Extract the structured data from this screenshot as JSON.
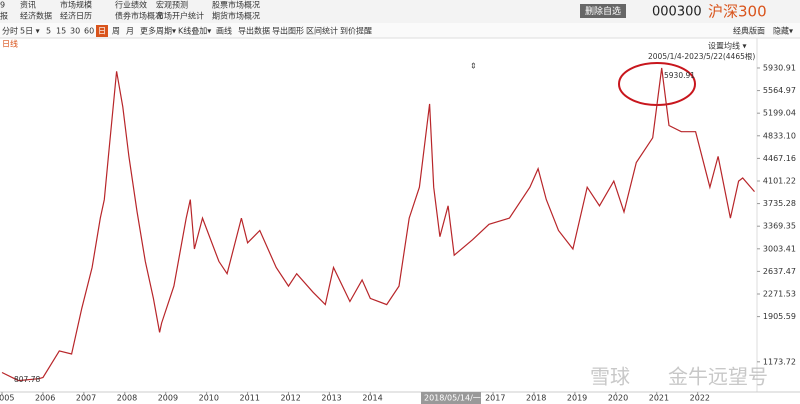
{
  "menu": {
    "rows": [
      [
        "9",
        "资讯",
        "市场规模",
        "行业绩效",
        "宏观预测",
        "股票市场概况"
      ],
      [
        "报",
        "经济数据",
        "经济日历",
        "债券市场概况",
        "市场开户统计",
        "期货市场概况"
      ]
    ]
  },
  "header": {
    "button": "删除自选",
    "code": "000300",
    "name": "沪深300"
  },
  "toolbar": {
    "items": [
      "分时",
      "5日 ▾",
      "5",
      "15",
      "30",
      "60",
      "日",
      "周",
      "月",
      "更多周期▾",
      "K线叠加▾",
      "画线",
      "导出数据",
      "导出图形",
      "区间统计",
      "到价提醒"
    ],
    "right": [
      "经典版面",
      "隐藏▾"
    ]
  },
  "chart_data": {
    "type": "line",
    "period_label": "日线",
    "ma_setting": "设置均线 ▾",
    "range_info": "2005/1/4-2023/5/22(4465根)",
    "peak_label": "5930.91",
    "low_label": "807.78",
    "crosshair_label": "2018/05/14/一",
    "watermark": [
      "雪球",
      "金牛远望号"
    ],
    "x": [
      2005.0,
      2005.4,
      2005.9,
      2006.0,
      2006.4,
      2006.7,
      2006.95,
      2007.2,
      2007.4,
      2007.5,
      2007.6,
      2007.8,
      2007.95,
      2008.1,
      2008.3,
      2008.5,
      2008.7,
      2008.85,
      2008.9,
      2009.2,
      2009.5,
      2009.6,
      2009.7,
      2009.9,
      2010.3,
      2010.5,
      2010.85,
      2011.0,
      2011.3,
      2011.7,
      2012.0,
      2012.2,
      2012.6,
      2012.9,
      2013.1,
      2013.5,
      2013.8,
      2014.0,
      2014.4,
      2014.7,
      2014.95,
      2015.2,
      2015.45,
      2015.55,
      2015.7,
      2015.9,
      2016.05,
      2016.5,
      2016.9,
      2017.4,
      2017.9,
      2018.1,
      2018.3,
      2018.6,
      2018.95,
      2019.3,
      2019.6,
      2019.95,
      2020.2,
      2020.5,
      2020.9,
      2021.12,
      2021.3,
      2021.6,
      2021.95,
      2022.3,
      2022.5,
      2022.8,
      2023.0,
      2023.1,
      2023.39
    ],
    "series": [
      {
        "color": "#b8262a",
        "values": [
          1000,
          870,
          900,
          920,
          1350,
          1300,
          2040,
          2700,
          3500,
          3800,
          4500,
          5877,
          5300,
          4500,
          3600,
          2800,
          2200,
          1650,
          1800,
          2400,
          3500,
          3800,
          3000,
          3500,
          2800,
          2600,
          3500,
          3100,
          3300,
          2700,
          2400,
          2600,
          2300,
          2100,
          2700,
          2150,
          2500,
          2200,
          2100,
          2400,
          3500,
          4000,
          5350,
          4000,
          3200,
          3700,
          2900,
          3150,
          3400,
          3500,
          4000,
          4300,
          3800,
          3300,
          3000,
          4000,
          3700,
          4100,
          3600,
          4400,
          4800,
          5930.91,
          5000,
          4900,
          4900,
          4000,
          4500,
          3500,
          4100,
          4150,
          3930
        ]
      }
    ],
    "xlim": [
      2004.95,
      2023.45
    ],
    "xticks": [
      2005,
      2006,
      2007,
      2008,
      2009,
      2010,
      2011,
      2012,
      2013,
      2014,
      2017,
      2018,
      2019,
      2020,
      2021,
      2022
    ],
    "ylim": [
      685,
      6222
    ],
    "yticks": [
      5930.91,
      5564.97,
      5199.04,
      {
        "value": 4833.1,
        "label": "4833.10"
      },
      4467.16,
      4101.22,
      3735.28,
      3369.35,
      3003.41,
      2637.47,
      2271.53,
      1905.59,
      1173.72
    ]
  }
}
